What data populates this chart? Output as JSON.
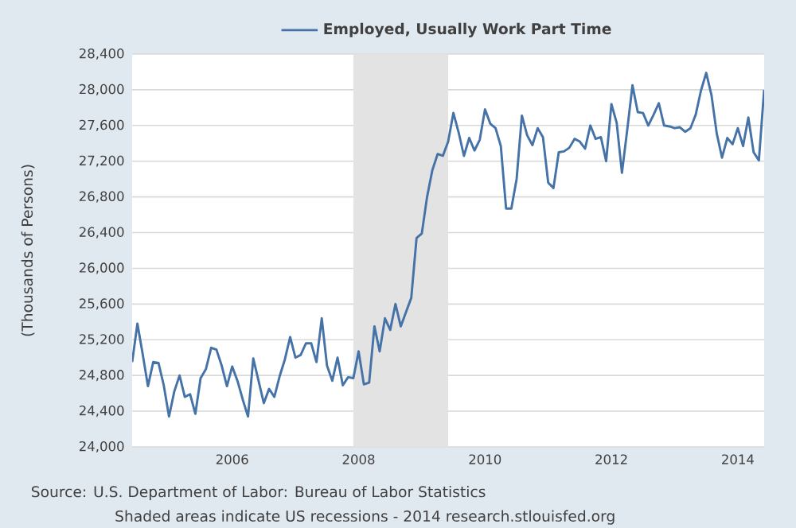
{
  "chart_data": {
    "type": "line",
    "ylabel": "(Thousands of Persons)",
    "annotations": [
      "Source: U.S. Department of Labor: Bureau of Labor Statistics",
      "Shaded areas indicate US recessions - 2014 research.stlouisfed.org"
    ],
    "x": [
      "2004-06",
      "2004-07",
      "2004-08",
      "2004-09",
      "2004-10",
      "2004-11",
      "2004-12",
      "2005-01",
      "2005-02",
      "2005-03",
      "2005-04",
      "2005-05",
      "2005-06",
      "2005-07",
      "2005-08",
      "2005-09",
      "2005-10",
      "2005-11",
      "2005-12",
      "2006-01",
      "2006-02",
      "2006-03",
      "2006-04",
      "2006-05",
      "2006-06",
      "2006-07",
      "2006-08",
      "2006-09",
      "2006-10",
      "2006-11",
      "2006-12",
      "2007-01",
      "2007-02",
      "2007-03",
      "2007-04",
      "2007-05",
      "2007-06",
      "2007-07",
      "2007-08",
      "2007-09",
      "2007-10",
      "2007-11",
      "2007-12",
      "2008-01",
      "2008-02",
      "2008-03",
      "2008-04",
      "2008-05",
      "2008-06",
      "2008-07",
      "2008-08",
      "2008-09",
      "2008-10",
      "2008-11",
      "2008-12",
      "2009-01",
      "2009-02",
      "2009-03",
      "2009-04",
      "2009-05",
      "2009-06",
      "2009-07",
      "2009-08",
      "2009-09",
      "2009-10",
      "2009-11",
      "2009-12",
      "2010-01",
      "2010-02",
      "2010-03",
      "2010-04",
      "2010-05",
      "2010-06",
      "2010-07",
      "2010-08",
      "2010-09",
      "2010-10",
      "2010-11",
      "2010-12",
      "2011-01",
      "2011-02",
      "2011-03",
      "2011-04",
      "2011-05",
      "2011-06",
      "2011-07",
      "2011-08",
      "2011-09",
      "2011-10",
      "2011-11",
      "2011-12",
      "2012-01",
      "2012-02",
      "2012-03",
      "2012-04",
      "2012-05",
      "2012-06",
      "2012-07",
      "2012-08",
      "2012-09",
      "2012-10",
      "2012-11",
      "2012-12",
      "2013-01",
      "2013-02",
      "2013-03",
      "2013-04",
      "2013-05",
      "2013-06",
      "2013-07",
      "2013-08",
      "2013-09",
      "2013-10",
      "2013-11",
      "2013-12",
      "2014-01",
      "2014-02",
      "2014-03",
      "2014-04",
      "2014-05",
      "2014-06"
    ],
    "series": [
      {
        "name": "Employed, Usually Work Part Time",
        "color": "#4572a7",
        "values": [
          24950,
          25380,
          25040,
          24680,
          24950,
          24940,
          24690,
          24340,
          24620,
          24800,
          24560,
          24590,
          24370,
          24770,
          24870,
          25110,
          25090,
          24910,
          24680,
          24900,
          24740,
          24530,
          24340,
          24990,
          24740,
          24490,
          24650,
          24560,
          24790,
          24980,
          25230,
          25000,
          25030,
          25160,
          25160,
          24950,
          25440,
          24910,
          24740,
          25000,
          24690,
          24780,
          24770,
          25070,
          24700,
          24720,
          25350,
          25070,
          25440,
          25310,
          25600,
          25350,
          25510,
          25670,
          26340,
          26390,
          26800,
          27100,
          27280,
          27260,
          27420,
          27740,
          27520,
          27260,
          27460,
          27320,
          27440,
          27780,
          27620,
          27570,
          27370,
          26670,
          26670,
          27000,
          27710,
          27490,
          27380,
          27570,
          27470,
          26960,
          26900,
          27300,
          27310,
          27350,
          27450,
          27420,
          27340,
          27600,
          27450,
          27470,
          27200,
          27840,
          27630,
          27070,
          27550,
          28050,
          27750,
          27740,
          27600,
          27720,
          27850,
          27600,
          27590,
          27570,
          27580,
          27530,
          27570,
          27720,
          27990,
          28190,
          27940,
          27510,
          27240,
          27460,
          27390,
          27570,
          27370,
          27690,
          27300,
          27210,
          28000
        ]
      }
    ],
    "xlim": [
      "2004-06",
      "2014-06"
    ],
    "xticks": [
      "2006",
      "2008",
      "2010",
      "2012",
      "2014"
    ],
    "ylim": [
      24000,
      28400
    ],
    "yticks": [
      {
        "value": 24000,
        "label": "24,000"
      },
      {
        "value": 24400,
        "label": "24,400"
      },
      {
        "value": 24800,
        "label": "24,800"
      },
      {
        "value": 25200,
        "label": "25,200"
      },
      {
        "value": 25600,
        "label": "25,600"
      },
      {
        "value": 26000,
        "label": "26,000"
      },
      {
        "value": 26400,
        "label": "26,400"
      },
      {
        "value": 26800,
        "label": "26,800"
      },
      {
        "value": 27200,
        "label": "27,200"
      },
      {
        "value": 27600,
        "label": "27,600"
      },
      {
        "value": 28000,
        "label": "28,000"
      },
      {
        "value": 28400,
        "label": "28,400"
      }
    ],
    "bands": [
      {
        "axis": "x",
        "from": "2007-12",
        "to": "2009-06",
        "color": "#e3e3e3"
      }
    ],
    "grid": "y",
    "legend": "top",
    "line_style": "solid",
    "marker": "none"
  }
}
